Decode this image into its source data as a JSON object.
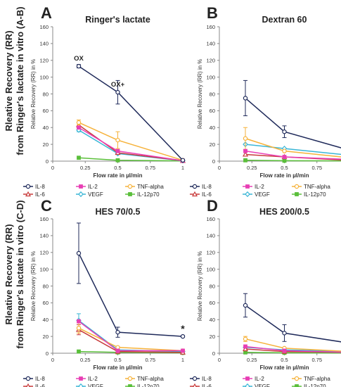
{
  "figure": {
    "row_labels": [
      [
        "Rleative Recovery (RR)",
        "from Ringer's lactate in vitro (A-B)"
      ],
      [
        "Rleative Recovery (RR)",
        "from Ringer's lactate in vitro (C-D)"
      ]
    ]
  },
  "chart_data": [
    {
      "type": "line",
      "panel": "A",
      "title": "Ringer's lactate",
      "xlabel": "Flow rate in µl/min",
      "ylabel": "Relative Recovery (RR) in %",
      "x": [
        0.2,
        0.5,
        1
      ],
      "xlim": [
        0,
        1
      ],
      "ylim": [
        0,
        160
      ],
      "xticks": [
        "0",
        "0.25",
        "0.5",
        "0.75",
        "1"
      ],
      "yticks": [
        "0",
        "20",
        "40",
        "60",
        "80",
        "100",
        "120",
        "140",
        "160"
      ],
      "grid": false,
      "legend_position": "bottom",
      "annotations": [
        {
          "text": "OX",
          "x": 0.2,
          "y": 113
        },
        {
          "text": "OX+",
          "x": 0.5,
          "y": 82
        }
      ],
      "series": [
        {
          "name": "IL-8",
          "color": "#1f2a5a",
          "marker": "circle",
          "values": [
            113,
            82,
            1
          ],
          "errors": [
            2,
            14,
            1
          ]
        },
        {
          "name": "IL-2",
          "color": "#e83fb5",
          "marker": "square",
          "values": [
            40,
            12,
            0.5
          ],
          "errors": [
            0,
            0,
            0
          ]
        },
        {
          "name": "TNF-alpha",
          "color": "#f6b23a",
          "marker": "circle",
          "values": [
            46,
            25,
            1
          ],
          "errors": [
            3,
            10,
            0
          ]
        },
        {
          "name": "IL-6",
          "color": "#c83a3a",
          "marker": "triangle",
          "values": [
            43,
            10,
            0.5
          ],
          "errors": [
            3,
            0,
            0
          ]
        },
        {
          "name": "VEGF",
          "color": "#3ab6d6",
          "marker": "diamond",
          "values": [
            37,
            9,
            0.5
          ],
          "errors": [
            2,
            0,
            0
          ]
        },
        {
          "name": "IL-12p70",
          "color": "#5abf3a",
          "marker": "square",
          "values": [
            4,
            1,
            0.3
          ],
          "errors": [
            0,
            0,
            0
          ]
        }
      ]
    },
    {
      "type": "line",
      "panel": "B",
      "title": "Dextran 60",
      "xlabel": "Flow rate in µl/min",
      "ylabel": "Relative Recovery (RR) in %",
      "x": [
        0.2,
        0.5,
        1
      ],
      "xlim": [
        0,
        1
      ],
      "ylim": [
        0,
        160
      ],
      "xticks": [
        "0",
        "0.25",
        "0.5",
        "0.75",
        "1"
      ],
      "yticks": [
        "0",
        "20",
        "40",
        "60",
        "80",
        "100",
        "120",
        "140",
        "160"
      ],
      "grid": false,
      "legend_position": "bottom",
      "annotations": [
        {
          "text": "*",
          "x": 1,
          "y": 13
        }
      ],
      "series": [
        {
          "name": "IL-8",
          "color": "#1f2a5a",
          "marker": "circle",
          "values": [
            75,
            35,
            13
          ],
          "errors": [
            21,
            7,
            1
          ]
        },
        {
          "name": "IL-2",
          "color": "#e83fb5",
          "marker": "square",
          "values": [
            12,
            5,
            2
          ],
          "errors": [
            0,
            0,
            0
          ]
        },
        {
          "name": "TNF-alpha",
          "color": "#f6b23a",
          "marker": "circle",
          "values": [
            27,
            12,
            4
          ],
          "errors": [
            13,
            0,
            0
          ]
        },
        {
          "name": "IL-6",
          "color": "#c83a3a",
          "marker": "triangle",
          "values": [
            8,
            5,
            1
          ],
          "errors": [
            0,
            0,
            0
          ]
        },
        {
          "name": "VEGF",
          "color": "#3ab6d6",
          "marker": "diamond",
          "values": [
            20,
            15,
            7
          ],
          "errors": [
            0,
            0,
            0
          ]
        },
        {
          "name": "IL-12p70",
          "color": "#5abf3a",
          "marker": "square",
          "values": [
            1,
            0.5,
            0.3
          ],
          "errors": [
            0,
            0,
            0
          ]
        }
      ]
    },
    {
      "type": "line",
      "panel": "C",
      "title": "HES 70/0.5",
      "xlabel": "Flow rate in µl/min",
      "ylabel": "Relative Recovery (RR) in %",
      "x": [
        0.2,
        0.5,
        1
      ],
      "xlim": [
        0,
        1
      ],
      "ylim": [
        0,
        160
      ],
      "xticks": [
        "0",
        "0.25",
        "0.5",
        "0.75",
        "1"
      ],
      "yticks": [
        "0",
        "20",
        "40",
        "60",
        "80",
        "100",
        "120",
        "140",
        "160"
      ],
      "grid": false,
      "legend_position": "bottom",
      "annotations": [
        {
          "text": "*",
          "x": 1,
          "y": 20
        }
      ],
      "series": [
        {
          "name": "IL-8",
          "color": "#1f2a5a",
          "marker": "circle",
          "values": [
            119,
            25,
            20
          ],
          "errors": [
            36,
            6,
            1
          ]
        },
        {
          "name": "IL-2",
          "color": "#e83fb5",
          "marker": "square",
          "values": [
            38,
            3,
            3
          ],
          "errors": [
            0,
            0,
            0
          ]
        },
        {
          "name": "TNF-alpha",
          "color": "#f6b23a",
          "marker": "circle",
          "values": [
            30,
            7,
            3
          ],
          "errors": [
            6,
            0,
            0
          ]
        },
        {
          "name": "IL-6",
          "color": "#c83a3a",
          "marker": "triangle",
          "values": [
            28,
            2,
            1
          ],
          "errors": [
            6,
            0,
            0
          ]
        },
        {
          "name": "VEGF",
          "color": "#3ab6d6",
          "marker": "diamond",
          "values": [
            39,
            4,
            2
          ],
          "errors": [
            8,
            0,
            0
          ]
        },
        {
          "name": "IL-12p70",
          "color": "#5abf3a",
          "marker": "square",
          "values": [
            2,
            1,
            0.5
          ],
          "errors": [
            0,
            0,
            0
          ]
        }
      ]
    },
    {
      "type": "line",
      "panel": "D",
      "title": "HES 200/0.5",
      "xlabel": "Flow rate in µl/min",
      "ylabel": "Relative Recovery (RR) in %",
      "x": [
        0.2,
        0.5,
        1
      ],
      "xlim": [
        0,
        1
      ],
      "ylim": [
        0,
        160
      ],
      "xticks": [
        "0",
        "0.25",
        "0.5",
        "0.75",
        "1"
      ],
      "yticks": [
        "0",
        "20",
        "40",
        "60",
        "80",
        "100",
        "120",
        "140",
        "160"
      ],
      "grid": false,
      "legend_position": "bottom",
      "annotations": [
        {
          "text": "*",
          "x": 1,
          "y": 12
        }
      ],
      "series": [
        {
          "name": "IL-8",
          "color": "#1f2a5a",
          "marker": "circle",
          "values": [
            57,
            24,
            12
          ],
          "errors": [
            14,
            10,
            1
          ]
        },
        {
          "name": "IL-2",
          "color": "#e83fb5",
          "marker": "square",
          "values": [
            8,
            3,
            1
          ],
          "errors": [
            0,
            0,
            0
          ]
        },
        {
          "name": "TNF-alpha",
          "color": "#f6b23a",
          "marker": "circle",
          "values": [
            17,
            6,
            2
          ],
          "errors": [
            3,
            0,
            0
          ]
        },
        {
          "name": "IL-6",
          "color": "#c83a3a",
          "marker": "triangle",
          "values": [
            5,
            2,
            1
          ],
          "errors": [
            0,
            0,
            0
          ]
        },
        {
          "name": "VEGF",
          "color": "#3ab6d6",
          "marker": "diamond",
          "values": [
            7,
            4,
            2
          ],
          "errors": [
            0,
            0,
            0
          ]
        },
        {
          "name": "IL-12p70",
          "color": "#5abf3a",
          "marker": "square",
          "values": [
            1,
            0.5,
            0.3
          ],
          "errors": [
            0,
            0,
            0
          ]
        }
      ]
    }
  ]
}
